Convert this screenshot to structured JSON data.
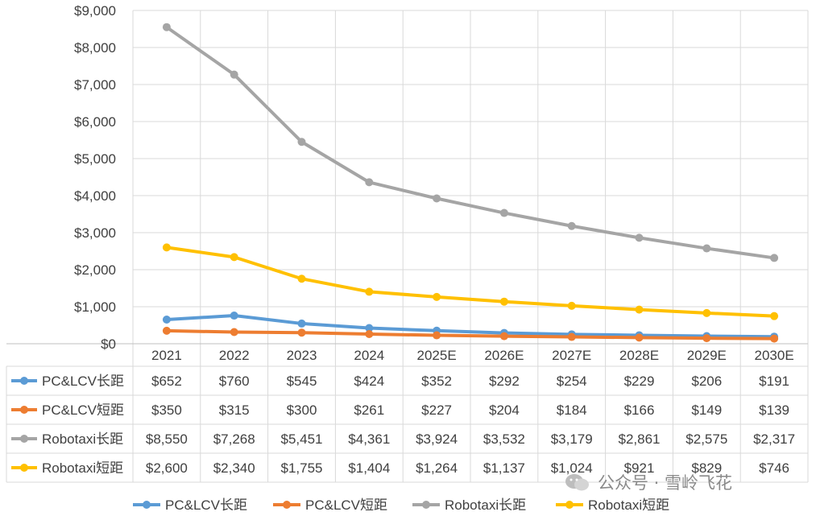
{
  "chart_data": {
    "type": "line",
    "categories": [
      "2021",
      "2022",
      "2023",
      "2024",
      "2025E",
      "2026E",
      "2027E",
      "2028E",
      "2029E",
      "2030E"
    ],
    "ylim": [
      0,
      9000
    ],
    "yticks": [
      "$9,000",
      "$8,000",
      "$7,000",
      "$6,000",
      "$5,000",
      "$4,000",
      "$3,000",
      "$2,000",
      "$1,000",
      "$0"
    ],
    "ytick_values": [
      9000,
      8000,
      7000,
      6000,
      5000,
      4000,
      3000,
      2000,
      1000,
      0
    ],
    "grid": true,
    "legend_position": "bottom",
    "series": [
      {
        "name": "PC&LCV长距",
        "color": "#5B9BD5",
        "values": [
          652,
          760,
          545,
          424,
          352,
          292,
          254,
          229,
          206,
          191
        ],
        "labels": [
          "$652",
          "$760",
          "$545",
          "$424",
          "$352",
          "$292",
          "$254",
          "$229",
          "$206",
          "$191"
        ]
      },
      {
        "name": "PC&LCV短距",
        "color": "#ED7D31",
        "values": [
          350,
          315,
          300,
          261,
          227,
          204,
          184,
          166,
          149,
          139
        ],
        "labels": [
          "$350",
          "$315",
          "$300",
          "$261",
          "$227",
          "$204",
          "$184",
          "$166",
          "$149",
          "$139"
        ]
      },
      {
        "name": "Robotaxi长距",
        "color": "#A5A5A5",
        "values": [
          8550,
          7268,
          5451,
          4361,
          3924,
          3532,
          3179,
          2861,
          2575,
          2317
        ],
        "labels": [
          "$8,550",
          "$7,268",
          "$5,451",
          "$4,361",
          "$3,924",
          "$3,532",
          "$3,179",
          "$2,861",
          "$2,575",
          "$2,317"
        ]
      },
      {
        "name": "Robotaxi短距",
        "color": "#FFC000",
        "values": [
          2600,
          2340,
          1755,
          1404,
          1264,
          1137,
          1024,
          921,
          829,
          746
        ],
        "labels": [
          "$2,600",
          "$2,340",
          "$1,755",
          "$1,404",
          "$1,264",
          "$1,137",
          "$1,024",
          "$921",
          "$829",
          "$746"
        ]
      }
    ]
  },
  "watermark": {
    "text": "公众号 · 雪岭飞花",
    "icon": "wechat-icon"
  }
}
